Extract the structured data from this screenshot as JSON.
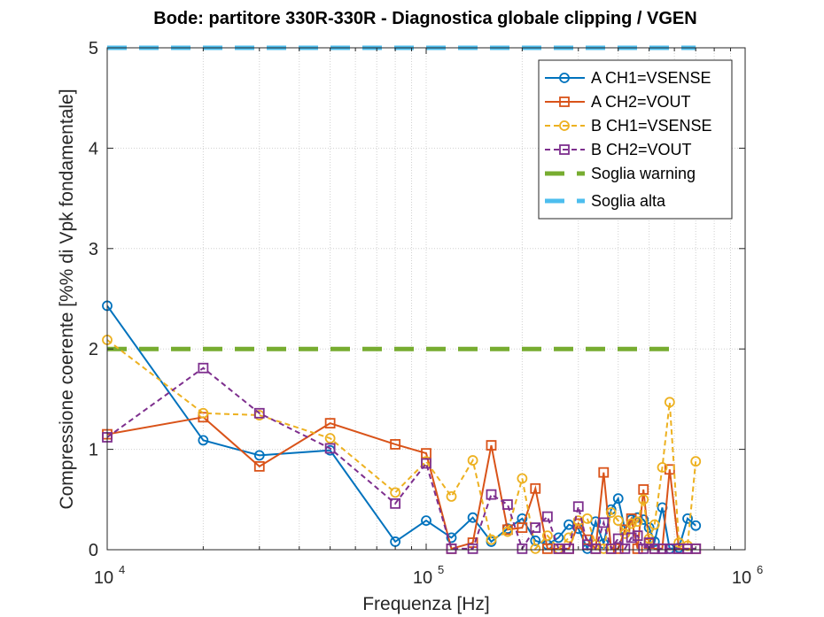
{
  "chart_data": {
    "type": "line",
    "title": "Bode: partitore 330R-330R - Diagnostica globale clipping / VGEN",
    "xlabel": "Frequenza [Hz]",
    "ylabel": "Compressione coerente [%% di Vpk fondamentale]",
    "xscale": "log",
    "xlim": [
      10000,
      1000000
    ],
    "ylim": [
      0,
      5
    ],
    "xticks": [
      {
        "value": 10000,
        "base": "10",
        "exp": "4"
      },
      {
        "value": 100000,
        "base": "10",
        "exp": "5"
      },
      {
        "value": 1000000,
        "base": "10",
        "exp": "6"
      }
    ],
    "yticks": [
      "0",
      "1",
      "2",
      "3",
      "4",
      "5"
    ],
    "grid": true,
    "legend_position": "top-right",
    "series": [
      {
        "name": "A CH1=VSENSE",
        "color": "#0072BD",
        "style": "solid",
        "marker": "circle",
        "points": [
          [
            10000,
            2.43
          ],
          [
            20000,
            1.09
          ],
          [
            30000,
            0.94
          ],
          [
            50000,
            0.99
          ],
          [
            80000,
            0.08
          ],
          [
            100000,
            0.29
          ],
          [
            120000,
            0.12
          ],
          [
            140000,
            0.32
          ],
          [
            160000,
            0.08
          ],
          [
            180000,
            0.21
          ],
          [
            200000,
            0.31
          ],
          [
            220000,
            0.09
          ],
          [
            240000,
            0.05
          ],
          [
            260000,
            0.12
          ],
          [
            280000,
            0.25
          ],
          [
            300000,
            0.21
          ],
          [
            320000,
            0.01
          ],
          [
            340000,
            0.28
          ],
          [
            360000,
            0.06
          ],
          [
            380000,
            0.4
          ],
          [
            400000,
            0.51
          ],
          [
            420000,
            0.2
          ],
          [
            440000,
            0.3
          ],
          [
            460000,
            0.32
          ],
          [
            480000,
            0.3
          ],
          [
            500000,
            0.22
          ],
          [
            520000,
            0.08
          ],
          [
            550000,
            0.42
          ],
          [
            580000,
            0.01
          ],
          [
            620000,
            0.02
          ],
          [
            660000,
            0.31
          ],
          [
            700000,
            0.24
          ]
        ]
      },
      {
        "name": "A CH2=VOUT",
        "color": "#D95319",
        "style": "solid",
        "marker": "square",
        "points": [
          [
            10000,
            1.15
          ],
          [
            20000,
            1.32
          ],
          [
            30000,
            0.83
          ],
          [
            50000,
            1.26
          ],
          [
            80000,
            1.05
          ],
          [
            100000,
            0.96
          ],
          [
            120000,
            0.01
          ],
          [
            140000,
            0.07
          ],
          [
            160000,
            1.04
          ],
          [
            180000,
            0.2
          ],
          [
            200000,
            0.22
          ],
          [
            220000,
            0.61
          ],
          [
            240000,
            0.01
          ],
          [
            260000,
            0.01
          ],
          [
            280000,
            0.01
          ],
          [
            300000,
            0.26
          ],
          [
            320000,
            0.1
          ],
          [
            340000,
            0.01
          ],
          [
            360000,
            0.77
          ],
          [
            380000,
            0.01
          ],
          [
            400000,
            0.01
          ],
          [
            420000,
            0.2
          ],
          [
            440000,
            0.31
          ],
          [
            460000,
            0.01
          ],
          [
            480000,
            0.6
          ],
          [
            500000,
            0.06
          ],
          [
            520000,
            0.01
          ],
          [
            550000,
            0.01
          ],
          [
            580000,
            0.8
          ],
          [
            620000,
            0.01
          ],
          [
            660000,
            0.01
          ],
          [
            700000,
            0.01
          ]
        ]
      },
      {
        "name": "B CH1=VSENSE",
        "color": "#EDB120",
        "style": "dashed",
        "marker": "circle",
        "points": [
          [
            10000,
            2.09
          ],
          [
            20000,
            1.36
          ],
          [
            30000,
            1.34
          ],
          [
            50000,
            1.11
          ],
          [
            80000,
            0.57
          ],
          [
            100000,
            0.88
          ],
          [
            120000,
            0.53
          ],
          [
            140000,
            0.89
          ],
          [
            160000,
            0.1
          ],
          [
            180000,
            0.18
          ],
          [
            200000,
            0.71
          ],
          [
            220000,
            0.01
          ],
          [
            240000,
            0.14
          ],
          [
            260000,
            0.01
          ],
          [
            280000,
            0.12
          ],
          [
            300000,
            0.29
          ],
          [
            320000,
            0.31
          ],
          [
            340000,
            0.05
          ],
          [
            360000,
            0.01
          ],
          [
            380000,
            0.37
          ],
          [
            400000,
            0.29
          ],
          [
            420000,
            0.16
          ],
          [
            440000,
            0.26
          ],
          [
            460000,
            0.28
          ],
          [
            480000,
            0.5
          ],
          [
            500000,
            0.11
          ],
          [
            520000,
            0.25
          ],
          [
            550000,
            0.82
          ],
          [
            580000,
            1.47
          ],
          [
            620000,
            0.07
          ],
          [
            660000,
            0.04
          ],
          [
            700000,
            0.88
          ]
        ]
      },
      {
        "name": "B CH2=VOUT",
        "color": "#7E2F8E",
        "style": "dashed",
        "marker": "square",
        "points": [
          [
            10000,
            1.12
          ],
          [
            20000,
            1.81
          ],
          [
            30000,
            1.36
          ],
          [
            50000,
            1.01
          ],
          [
            80000,
            0.46
          ],
          [
            100000,
            0.86
          ],
          [
            120000,
            0.01
          ],
          [
            140000,
            0.01
          ],
          [
            160000,
            0.55
          ],
          [
            180000,
            0.45
          ],
          [
            200000,
            0.01
          ],
          [
            220000,
            0.22
          ],
          [
            240000,
            0.33
          ],
          [
            260000,
            0.01
          ],
          [
            280000,
            0.01
          ],
          [
            300000,
            0.43
          ],
          [
            320000,
            0.05
          ],
          [
            340000,
            0.01
          ],
          [
            360000,
            0.27
          ],
          [
            380000,
            0.01
          ],
          [
            400000,
            0.11
          ],
          [
            420000,
            0.01
          ],
          [
            440000,
            0.12
          ],
          [
            460000,
            0.14
          ],
          [
            480000,
            0.01
          ],
          [
            500000,
            0.07
          ],
          [
            520000,
            0.01
          ],
          [
            550000,
            0.01
          ],
          [
            580000,
            0.01
          ],
          [
            620000,
            0.01
          ],
          [
            660000,
            0.01
          ],
          [
            700000,
            0.01
          ]
        ]
      }
    ],
    "thresholds": [
      {
        "name": "Soglia warning",
        "value": 2,
        "color": "#77AC30",
        "x_range": [
          10000,
          620000
        ]
      },
      {
        "name": "Soglia alta",
        "value": 5,
        "color": "#4DBEEE",
        "x_range": [
          10000,
          700000
        ]
      }
    ]
  }
}
